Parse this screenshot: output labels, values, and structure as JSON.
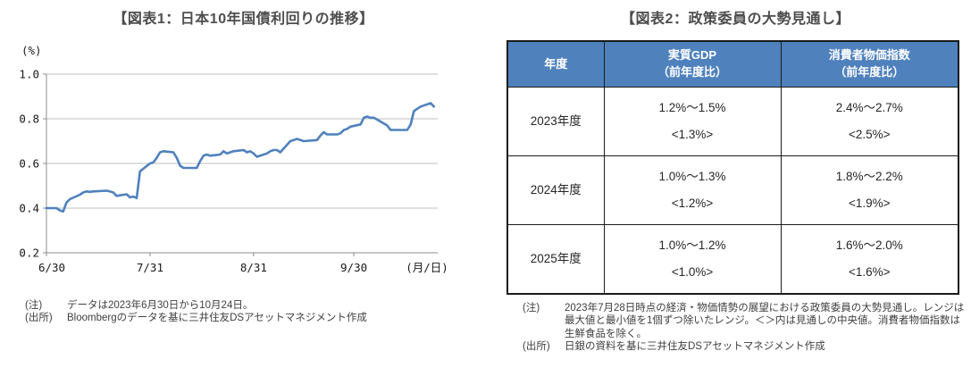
{
  "figure1": {
    "title": "【図表1：日本10年国債利回りの推移】",
    "unit_label": "(%)",
    "month_day_label": "(月/日)",
    "notes": [
      {
        "label": "(注)",
        "text": "データは2023年6月30日から10月24日。"
      },
      {
        "label": "(出所)",
        "text": "Bloombergのデータを基に三井住友DSアセットマネジメント作成"
      }
    ]
  },
  "chart_data": {
    "type": "line",
    "title": "日本10年国債利回りの推移",
    "ylabel": "(%)",
    "ylim": [
      0.2,
      1.0
    ],
    "yticks": [
      1.0,
      0.8,
      0.6,
      0.4,
      0.2
    ],
    "xticks": [
      "6/30",
      "7/31",
      "8/31",
      "9/30"
    ],
    "grid": true,
    "line_color": "#4F81BD",
    "series_name": "日本10年国債利回り",
    "x": [
      "6/30",
      "7/3",
      "7/4",
      "7/5",
      "7/6",
      "7/7",
      "7/10",
      "7/11",
      "7/12",
      "7/13",
      "7/14",
      "7/18",
      "7/19",
      "7/20",
      "7/21",
      "7/24",
      "7/25",
      "7/26",
      "7/27",
      "7/28",
      "7/31",
      "8/1",
      "8/2",
      "8/3",
      "8/4",
      "8/7",
      "8/8",
      "8/9",
      "8/10",
      "8/14",
      "8/15",
      "8/16",
      "8/17",
      "8/18",
      "8/21",
      "8/22",
      "8/23",
      "8/24",
      "8/25",
      "8/28",
      "8/29",
      "8/30",
      "8/31",
      "9/1",
      "9/4",
      "9/5",
      "9/6",
      "9/7",
      "9/8",
      "9/11",
      "9/12",
      "9/13",
      "9/14",
      "9/15",
      "9/19",
      "9/20",
      "9/21",
      "9/22",
      "9/25",
      "9/26",
      "9/27",
      "9/28",
      "9/29",
      "10/2",
      "10/3",
      "10/4",
      "10/5",
      "10/6",
      "10/10",
      "10/11",
      "10/12",
      "10/13",
      "10/16",
      "10/17",
      "10/18",
      "10/19",
      "10/20",
      "10/23",
      "10/24"
    ],
    "values": [
      0.4,
      0.4,
      0.39,
      0.385,
      0.425,
      0.44,
      0.46,
      0.47,
      0.475,
      0.473,
      0.475,
      0.478,
      0.475,
      0.47,
      0.455,
      0.462,
      0.448,
      0.452,
      0.445,
      0.565,
      0.6,
      0.605,
      0.625,
      0.65,
      0.655,
      0.65,
      0.625,
      0.59,
      0.58,
      0.58,
      0.61,
      0.635,
      0.64,
      0.635,
      0.64,
      0.655,
      0.645,
      0.65,
      0.655,
      0.66,
      0.65,
      0.655,
      0.645,
      0.63,
      0.645,
      0.655,
      0.66,
      0.66,
      0.65,
      0.7,
      0.705,
      0.71,
      0.705,
      0.7,
      0.705,
      0.725,
      0.74,
      0.73,
      0.73,
      0.735,
      0.75,
      0.755,
      0.765,
      0.775,
      0.805,
      0.81,
      0.805,
      0.805,
      0.77,
      0.75,
      0.75,
      0.75,
      0.75,
      0.775,
      0.835,
      0.845,
      0.855,
      0.87,
      0.855
    ]
  },
  "figure2": {
    "title": "【図表2：政策委員の大勢見通し】",
    "table": {
      "headers": [
        "年度",
        "実質GDP\n（前年度比）",
        "消費者物価指数\n（前年度比）"
      ],
      "rows": [
        {
          "year": "2023年度",
          "gdp": "1.2%～1.5%\n<1.3%>",
          "cpi": "2.4%～2.7%\n<2.5%>"
        },
        {
          "year": "2024年度",
          "gdp": "1.0%～1.3%\n<1.2%>",
          "cpi": "1.8%～2.2%\n<1.9%>"
        },
        {
          "year": "2025年度",
          "gdp": "1.0%～1.2%\n<1.0%>",
          "cpi": "1.6%～2.0%\n<1.6%>"
        }
      ]
    },
    "notes": [
      {
        "label": "(注)",
        "text": "2023年7月28日時点の経済・物価情勢の展望における政策委員の大勢見通し。レンジは最大値と最小値を1個ずつ除いたレンジ。＜＞内は見通しの中央値。消費者物価指数は生鮮食品を除く。"
      },
      {
        "label": "(出所)",
        "text": "日銀の資料を基に三井住友DSアセットマネジメント作成"
      }
    ]
  }
}
